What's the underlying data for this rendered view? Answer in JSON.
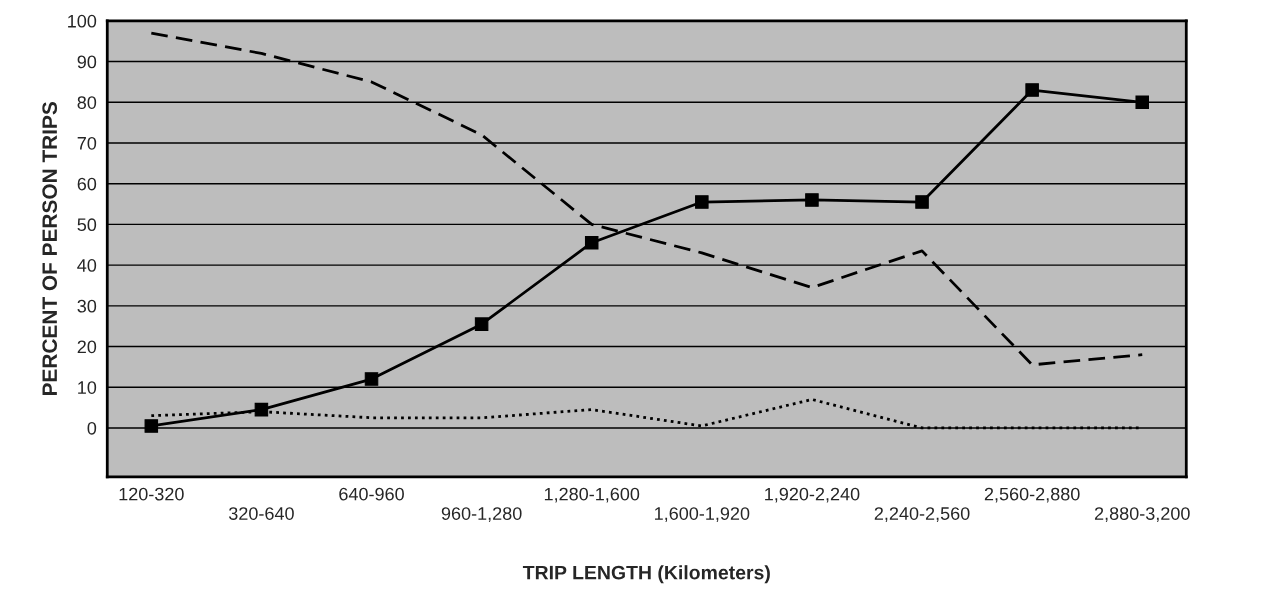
{
  "chart_data": {
    "type": "line",
    "xlabel": "TRIP LENGTH (Kilometers)",
    "ylabel": "PERCENT OF PERSON TRIPS",
    "categories": [
      "120-320",
      "320-640",
      "640-960",
      "960-1,280",
      "1,280-1,600",
      "1,600-1,920",
      "1,920-2,240",
      "2,240-2,560",
      "2,560-2,880",
      "2,880-3,200"
    ],
    "series": [
      {
        "color": "#000000",
        "marker": "square",
        "line_style": "solid",
        "values": [
          0.5,
          4.5,
          12,
          25.5,
          45.5,
          55.5,
          56,
          55.5,
          83,
          80
        ]
      },
      {
        "color": "#000000",
        "marker": "none",
        "line_style": "dashed",
        "values": [
          97,
          92,
          85,
          72,
          50,
          43,
          34.5,
          43.5,
          15.5,
          18
        ]
      },
      {
        "color": "#000000",
        "marker": "none",
        "line_style": "dotted",
        "values": [
          3,
          4,
          2.5,
          2.5,
          4.5,
          0.5,
          7,
          0,
          0,
          0
        ]
      }
    ],
    "ylim": [
      -12,
      100
    ],
    "yticks": [
      0,
      10,
      20,
      30,
      40,
      50,
      60,
      70,
      80,
      90,
      100
    ],
    "grid": "y"
  }
}
